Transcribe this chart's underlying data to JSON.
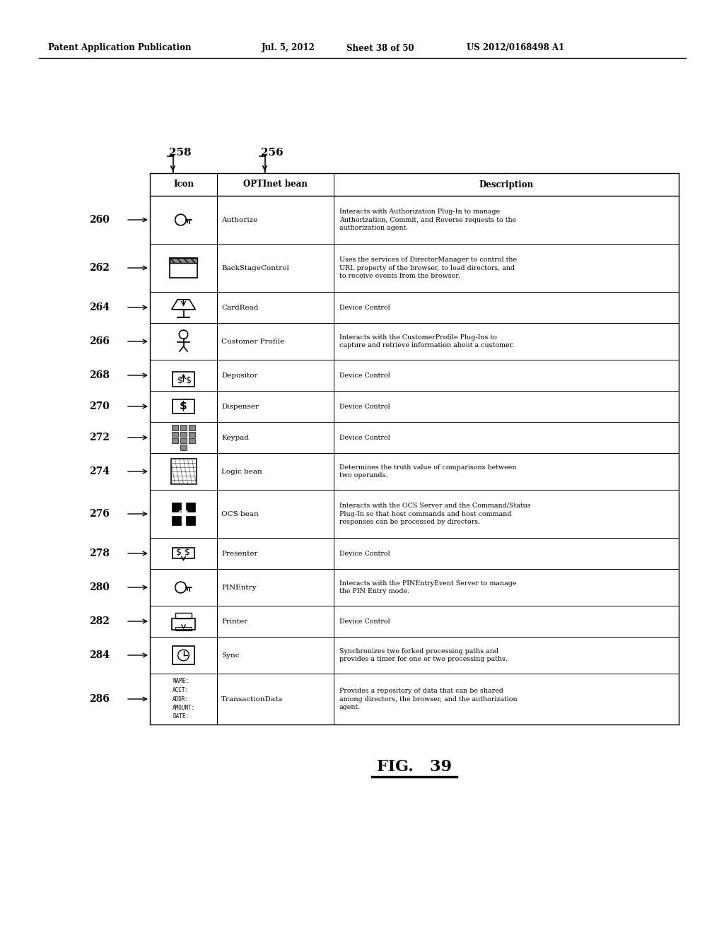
{
  "header_line1": "Patent Application Publication",
  "header_date": "Jul. 5, 2012",
  "header_sheet": "Sheet 38 of 50",
  "header_patent": "US 2012/0168498 A1",
  "label258": "258",
  "label256": "256",
  "fig_label": "FIG.   39",
  "col_headers": [
    "Icon",
    "OPTInet bean",
    "Description"
  ],
  "rows": [
    {
      "ref": "260",
      "bean": "Authorize",
      "desc": "Interacts with Authorization Plug-In to manage\nAuthorization, Commit, and Reverse requests to the\nauthorization agent."
    },
    {
      "ref": "262",
      "bean": "BackStageControl",
      "desc": "Uses the services of DirectorManager to control the\nURL property of the browser, to load directors, and\nto receive events from the browser."
    },
    {
      "ref": "264",
      "bean": "CardRead",
      "desc": "Device Control"
    },
    {
      "ref": "266",
      "bean": "Customer Profile",
      "desc": "Interacts with the CustomerProfile Plug-Ins to\ncapture and retrieve information about a customer."
    },
    {
      "ref": "268",
      "bean": "Depositor",
      "desc": "Device Control"
    },
    {
      "ref": "270",
      "bean": "Dispenser",
      "desc": "Device Control"
    },
    {
      "ref": "272",
      "bean": "Keypad",
      "desc": "Device Control"
    },
    {
      "ref": "274",
      "bean": "Logic bean",
      "desc": "Determines the truth value of comparisons between\ntwo operands."
    },
    {
      "ref": "276",
      "bean": "OCS bean",
      "desc": "Interacts with the OCS Server and the Command/Status\nPlug-In so that host commands and host command\nresponses can be processed by directors."
    },
    {
      "ref": "278",
      "bean": "Presenter",
      "desc": "Device Control"
    },
    {
      "ref": "280",
      "bean": "PINEntry",
      "desc": "Interacts with the PINEntryEvent Server to manage\nthe PIN Entry mode."
    },
    {
      "ref": "282",
      "bean": "Printer",
      "desc": "Device Control"
    },
    {
      "ref": "284",
      "bean": "Sync",
      "desc": "Synchronizes two forked processing paths and\nprovides a timer for one or two processing paths."
    },
    {
      "ref": "286",
      "bean": "TransactionData",
      "desc": "Provides a repository of data that can be shared\namong directors, the browser, and the authorization\nagent."
    }
  ],
  "bg_color": "#ffffff",
  "text_color": "#000000"
}
